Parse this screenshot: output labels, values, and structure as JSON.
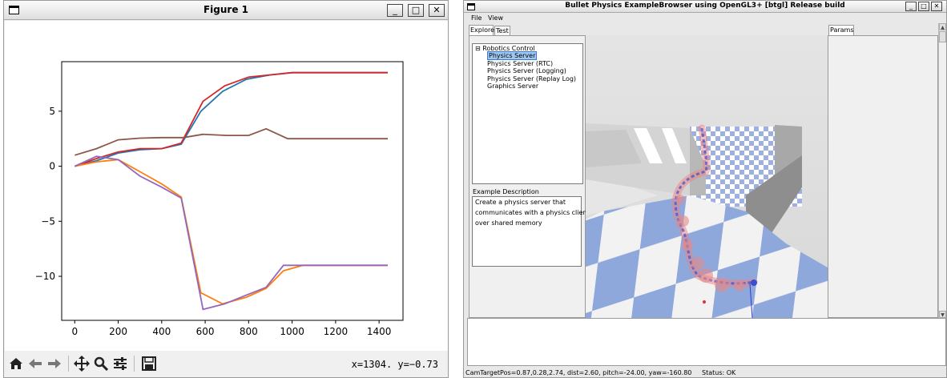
{
  "figure": {
    "title": "Figure 1",
    "window_buttons": {
      "minimize": "_",
      "maximize": "□",
      "close": "✕"
    },
    "toolbar": {
      "home_icon": "home-icon",
      "back_icon": "arrow-left-icon",
      "forward_icon": "arrow-right-icon",
      "pan_icon": "move-icon",
      "zoom_icon": "zoom-icon",
      "configure_icon": "sliders-icon",
      "save_icon": "save-icon",
      "coords": "x=1304. y=−0.73"
    }
  },
  "chart_data": {
    "type": "line",
    "xlim": [
      -60,
      1510
    ],
    "ylim": [
      -14.0,
      9.5
    ],
    "xticks": [
      0,
      200,
      400,
      600,
      800,
      1000,
      1200,
      1400
    ],
    "yticks": [
      5,
      0,
      -5,
      -10
    ],
    "xtick_labels": [
      "0",
      "200",
      "400",
      "600",
      "800",
      "1000",
      "1200",
      "1400"
    ],
    "ytick_labels": [
      "5",
      "0",
      "−5",
      "−10"
    ],
    "grid": false,
    "series": [
      {
        "color": "#1f77b4",
        "x": [
          0,
          100,
          200,
          300,
          400,
          490,
          580,
          680,
          790,
          900,
          1000,
          1200,
          1440
        ],
        "y": [
          0,
          0.5,
          1.2,
          1.5,
          1.6,
          2.0,
          5.0,
          6.8,
          7.9,
          8.3,
          8.5,
          8.5,
          8.5
        ]
      },
      {
        "color": "#d62728",
        "x": [
          0,
          100,
          200,
          300,
          400,
          490,
          590,
          690,
          800,
          900,
          1000,
          1200,
          1440
        ],
        "y": [
          0,
          0.7,
          1.3,
          1.6,
          1.6,
          2.1,
          5.9,
          7.3,
          8.1,
          8.3,
          8.5,
          8.5,
          8.5
        ]
      },
      {
        "color": "#8c564b",
        "x": [
          0,
          100,
          200,
          300,
          400,
          500,
          590,
          700,
          800,
          880,
          980,
          1200,
          1440
        ],
        "y": [
          1.0,
          1.6,
          2.4,
          2.55,
          2.6,
          2.6,
          2.9,
          2.8,
          2.8,
          3.4,
          2.5,
          2.5,
          2.5
        ]
      },
      {
        "color": "#ff7f0e",
        "x": [
          0,
          100,
          200,
          300,
          400,
          490,
          580,
          680,
          790,
          880,
          960,
          1050,
          1200,
          1440
        ],
        "y": [
          0,
          0.4,
          0.6,
          -0.5,
          -1.6,
          -2.8,
          -11.5,
          -12.5,
          -11.9,
          -11.1,
          -9.5,
          -9.0,
          -9.0,
          -9.0
        ]
      },
      {
        "color": "#9467bd",
        "x": [
          0,
          100,
          200,
          300,
          400,
          490,
          590,
          690,
          790,
          880,
          960,
          1050,
          1200,
          1440
        ],
        "y": [
          0,
          0.9,
          0.6,
          -0.9,
          -1.9,
          -2.9,
          -13.0,
          -12.5,
          -11.7,
          -11.0,
          -9.0,
          -9.0,
          -9.0,
          -9.0
        ]
      }
    ]
  },
  "bullet": {
    "title": "Bullet Physics ExampleBrowser using OpenGL3+ [btgl] Release build",
    "window_buttons": {
      "minimize": "_",
      "maximize": "□",
      "close": "✕"
    },
    "menu": {
      "file": "File",
      "view": "View"
    },
    "tabs": {
      "explorer": "Explorer",
      "test": "Test",
      "params": "Params"
    },
    "tree": {
      "expander": "⊟",
      "root": "Robotics Control",
      "items": [
        "Physics Server",
        "Physics Server (RTC)",
        "Physics Server (Logging)",
        "Physics Server (Replay Log)",
        "Graphics Server"
      ],
      "selected_index": 0
    },
    "description": {
      "label": "Example Description",
      "lines": [
        "Create a physics server that",
        "communicates with a physics client",
        "over shared memory"
      ]
    },
    "scroll_up": "▲",
    "scroll_down": "▼",
    "status": {
      "camera": "CamTargetPos=0.87,0.28,2.74, dist=2.60, pitch=-24.00, yaw=-160.80",
      "state": "Status: OK"
    }
  }
}
